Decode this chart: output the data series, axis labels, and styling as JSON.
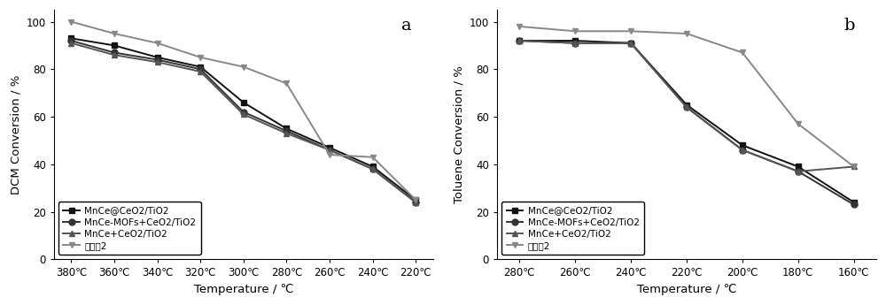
{
  "chart_a": {
    "title": "a",
    "xlabel": "Temperature / ℃",
    "ylabel": "DCM Conversion / %",
    "x_temps": [
      380,
      360,
      340,
      320,
      300,
      280,
      260,
      240,
      220
    ],
    "series": [
      {
        "label": "MnCe@CeO2/TiO2",
        "marker": "s",
        "color": "#111111",
        "linestyle": "-",
        "values": [
          93,
          90,
          85,
          81,
          66,
          55,
          47,
          39,
          25
        ]
      },
      {
        "label": "MnCe-MOFs+CeO2/TiO2",
        "marker": "o",
        "color": "#333333",
        "linestyle": "-",
        "values": [
          92,
          87,
          84,
          80,
          62,
          54,
          46,
          38,
          24
        ]
      },
      {
        "label": "MnCe+CeO2/TiO2",
        "marker": "^",
        "color": "#555555",
        "linestyle": "-",
        "values": [
          91,
          86,
          83,
          79,
          61,
          53,
          46,
          38,
          24
        ]
      },
      {
        "label": "实施例2",
        "marker": "v",
        "color": "#888888",
        "linestyle": "-",
        "values": [
          100,
          95,
          91,
          85,
          81,
          74,
          44,
          43,
          25
        ]
      }
    ],
    "ylim": [
      0,
      105
    ],
    "yticks": [
      0,
      20,
      40,
      60,
      80,
      100
    ]
  },
  "chart_b": {
    "title": "b",
    "xlabel": "Temperature / ℃",
    "ylabel": "Toluene Conversion / %",
    "x_temps": [
      280,
      260,
      240,
      220,
      200,
      180,
      160
    ],
    "series": [
      {
        "label": "MnCe@CeO2/TiO2",
        "marker": "s",
        "color": "#111111",
        "linestyle": "-",
        "values": [
          92,
          92,
          91,
          65,
          48,
          39,
          24
        ]
      },
      {
        "label": "MnCe-MOFs+CeO2/TiO2",
        "marker": "o",
        "color": "#333333",
        "linestyle": "-",
        "values": [
          92,
          91,
          91,
          64,
          46,
          37,
          23
        ]
      },
      {
        "label": "MnCe+CeO2/TiO2",
        "marker": "^",
        "color": "#555555",
        "linestyle": "-",
        "values": [
          92,
          91,
          91,
          64,
          46,
          37,
          39
        ]
      },
      {
        "label": "实施例2",
        "marker": "v",
        "color": "#888888",
        "linestyle": "-",
        "values": [
          98,
          96,
          96,
          95,
          87,
          57,
          39
        ]
      }
    ],
    "ylim": [
      0,
      105
    ],
    "yticks": [
      0,
      20,
      40,
      60,
      80,
      100
    ]
  },
  "background_color": "#ffffff",
  "legend_fontsize": 7.5,
  "tick_fontsize": 8.5,
  "label_fontsize": 9.5,
  "title_fontsize": 14,
  "marker_size": 5,
  "linewidth": 1.4
}
